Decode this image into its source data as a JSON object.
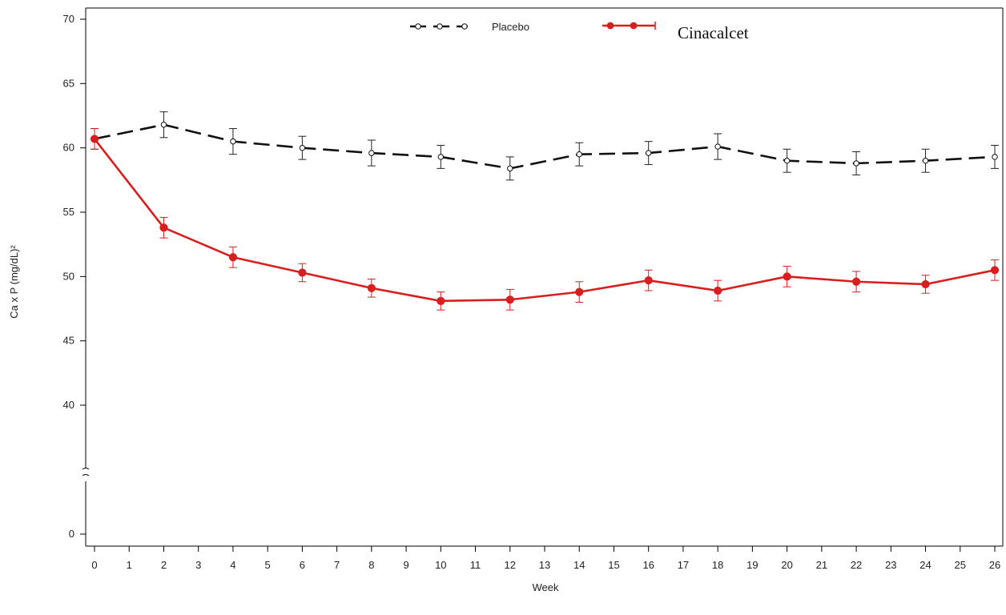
{
  "chart_data": {
    "type": "line",
    "title": "",
    "xlabel": "Week",
    "ylabel": "Ca x P (mg/dL)²",
    "x": [
      0,
      2,
      4,
      6,
      8,
      10,
      12,
      14,
      16,
      18,
      20,
      22,
      24,
      26
    ],
    "x_ticks": [
      "0",
      "1",
      "2",
      "3",
      "4",
      "5",
      "6",
      "7",
      "8",
      "9",
      "10",
      "11",
      "12",
      "13",
      "14",
      "15",
      "16",
      "17",
      "18",
      "19",
      "20",
      "21",
      "22",
      "23",
      "24",
      "25",
      "26"
    ],
    "y_ticks": [
      "0",
      "40",
      "45",
      "50",
      "55",
      "60",
      "65",
      "70"
    ],
    "y_axis_break": true,
    "ylim": [
      38,
      70
    ],
    "xlim": [
      0,
      26
    ],
    "legend_position": "top-center",
    "series": [
      {
        "name": "Placebo",
        "color": "#111111",
        "line_style": "dashed",
        "marker": "open-circle",
        "values": [
          60.7,
          61.8,
          60.5,
          60.0,
          59.6,
          59.3,
          58.4,
          59.5,
          59.6,
          60.1,
          59.0,
          58.8,
          59.0,
          59.3
        ],
        "error": [
          0.8,
          1.0,
          1.0,
          0.9,
          1.0,
          0.9,
          0.9,
          0.9,
          0.9,
          1.0,
          0.9,
          0.9,
          0.9,
          0.9
        ]
      },
      {
        "name": "Cinacalcet",
        "color": "#d81e1e",
        "line_style": "solid",
        "marker": "filled-circle",
        "values": [
          60.7,
          53.8,
          51.5,
          50.3,
          49.1,
          48.1,
          48.2,
          48.8,
          49.7,
          48.9,
          50.0,
          49.6,
          49.4,
          50.5
        ],
        "error": [
          0.8,
          0.8,
          0.8,
          0.7,
          0.7,
          0.7,
          0.8,
          0.8,
          0.8,
          0.8,
          0.8,
          0.8,
          0.7,
          0.8
        ]
      }
    ]
  }
}
